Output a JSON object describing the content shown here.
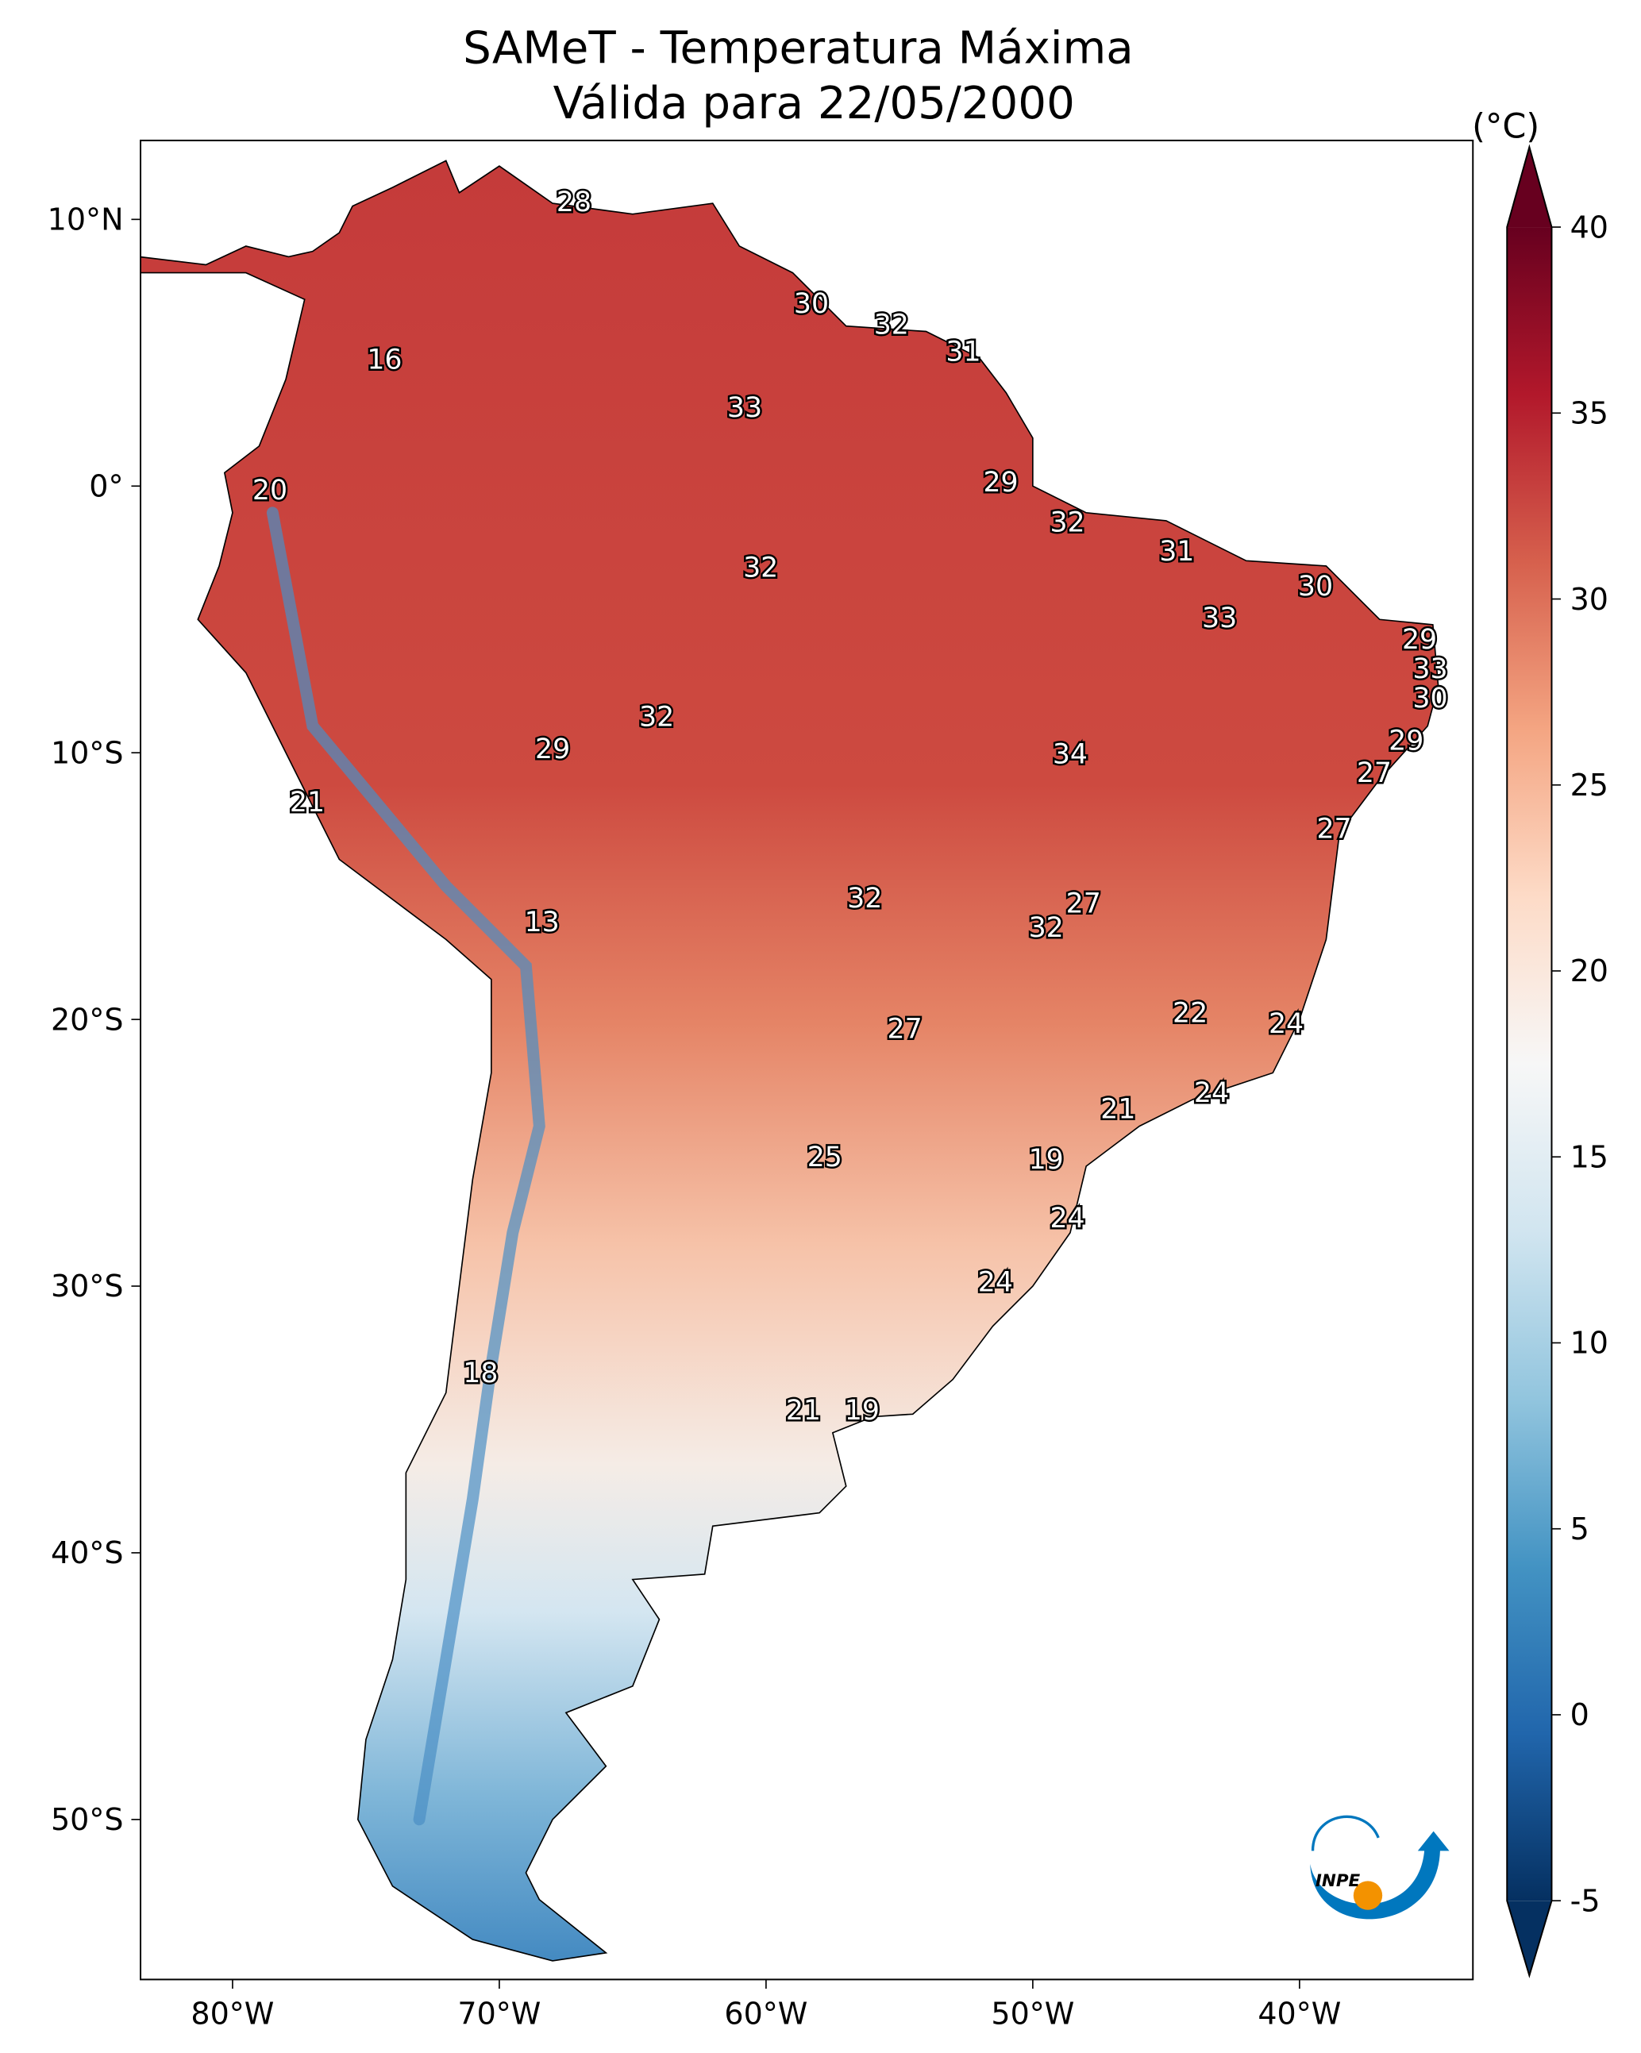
{
  "title": {
    "line1": "SAMeT - Temperatura Máxima",
    "line2": "Válida para 22/05/2000"
  },
  "map": {
    "extent_lon": [
      -83.45,
      -33.5
    ],
    "extent_lat": [
      -56.0,
      12.96
    ],
    "lon_ticks": [
      {
        "value": -80,
        "label": "80°W"
      },
      {
        "value": -70,
        "label": "70°W"
      },
      {
        "value": -60,
        "label": "60°W"
      },
      {
        "value": -50,
        "label": "50°W"
      },
      {
        "value": -40,
        "label": "40°W"
      }
    ],
    "lat_ticks": [
      {
        "value": 10,
        "label": "10°N"
      },
      {
        "value": 0,
        "label": "0°"
      },
      {
        "value": -10,
        "label": "10°S"
      },
      {
        "value": -20,
        "label": "20°S"
      },
      {
        "value": -30,
        "label": "30°S"
      },
      {
        "value": -40,
        "label": "40°S"
      },
      {
        "value": -50,
        "label": "50°S"
      }
    ],
    "point_labels": [
      {
        "t": "28",
        "lon": -67.2,
        "lat": 10.6
      },
      {
        "t": "30",
        "lon": -58.3,
        "lat": 6.8
      },
      {
        "t": "32",
        "lon": -55.3,
        "lat": 6.0
      },
      {
        "t": "31",
        "lon": -52.6,
        "lat": 5.0
      },
      {
        "t": "16",
        "lon": -74.3,
        "lat": 4.7
      },
      {
        "t": "33",
        "lon": -60.8,
        "lat": 2.9
      },
      {
        "t": "29",
        "lon": -51.2,
        "lat": 0.1
      },
      {
        "t": "20",
        "lon": -78.6,
        "lat": -0.2
      },
      {
        "t": "32",
        "lon": -48.7,
        "lat": -1.4
      },
      {
        "t": "31",
        "lon": -44.6,
        "lat": -2.5
      },
      {
        "t": "32",
        "lon": -60.2,
        "lat": -3.1
      },
      {
        "t": "30",
        "lon": -39.4,
        "lat": -3.8
      },
      {
        "t": "33",
        "lon": -43.0,
        "lat": -5.0
      },
      {
        "t": "29",
        "lon": -35.5,
        "lat": -5.8
      },
      {
        "t": "33",
        "lon": -35.1,
        "lat": -6.9
      },
      {
        "t": "30",
        "lon": -35.1,
        "lat": -8.0
      },
      {
        "t": "32",
        "lon": -64.1,
        "lat": -8.7
      },
      {
        "t": "29",
        "lon": -36.0,
        "lat": -9.6
      },
      {
        "t": "29",
        "lon": -68.0,
        "lat": -9.9
      },
      {
        "t": "34",
        "lon": -48.6,
        "lat": -10.1
      },
      {
        "t": "27",
        "lon": -37.2,
        "lat": -10.8
      },
      {
        "t": "21",
        "lon": -77.2,
        "lat": -11.9
      },
      {
        "t": "27",
        "lon": -38.7,
        "lat": -12.9
      },
      {
        "t": "32",
        "lon": -56.3,
        "lat": -15.5
      },
      {
        "t": "27",
        "lon": -48.1,
        "lat": -15.7
      },
      {
        "t": "13",
        "lon": -68.4,
        "lat": -16.4
      },
      {
        "t": "32",
        "lon": -49.5,
        "lat": -16.6
      },
      {
        "t": "22",
        "lon": -44.1,
        "lat": -19.8
      },
      {
        "t": "24",
        "lon": -40.5,
        "lat": -20.2
      },
      {
        "t": "27",
        "lon": -54.8,
        "lat": -20.4
      },
      {
        "t": "24",
        "lon": -43.3,
        "lat": -22.8
      },
      {
        "t": "21",
        "lon": -46.8,
        "lat": -23.4
      },
      {
        "t": "25",
        "lon": -57.8,
        "lat": -25.2
      },
      {
        "t": "19",
        "lon": -49.5,
        "lat": -25.3
      },
      {
        "t": "24",
        "lon": -48.7,
        "lat": -27.5
      },
      {
        "t": "24",
        "lon": -51.4,
        "lat": -29.9
      },
      {
        "t": "18",
        "lon": -70.7,
        "lat": -33.3
      },
      {
        "t": "21",
        "lon": -58.6,
        "lat": -34.7
      },
      {
        "t": "19",
        "lon": -56.4,
        "lat": -34.7
      }
    ]
  },
  "colorbar": {
    "unit": "(°C)",
    "range": [
      -5,
      40
    ],
    "ticks": [
      "40",
      "35",
      "30",
      "25",
      "20",
      "15",
      "10",
      "5",
      "0",
      "-5"
    ],
    "extend": "both",
    "colormap": [
      "#053061",
      "#2166ac",
      "#4393c3",
      "#92c5de",
      "#d1e5f0",
      "#f7f7f7",
      "#fddbc7",
      "#f4a582",
      "#d6604d",
      "#b2182b",
      "#67001f"
    ]
  },
  "logo": {
    "text": "INPE",
    "blue": "#0077be",
    "orange": "#f39200"
  }
}
